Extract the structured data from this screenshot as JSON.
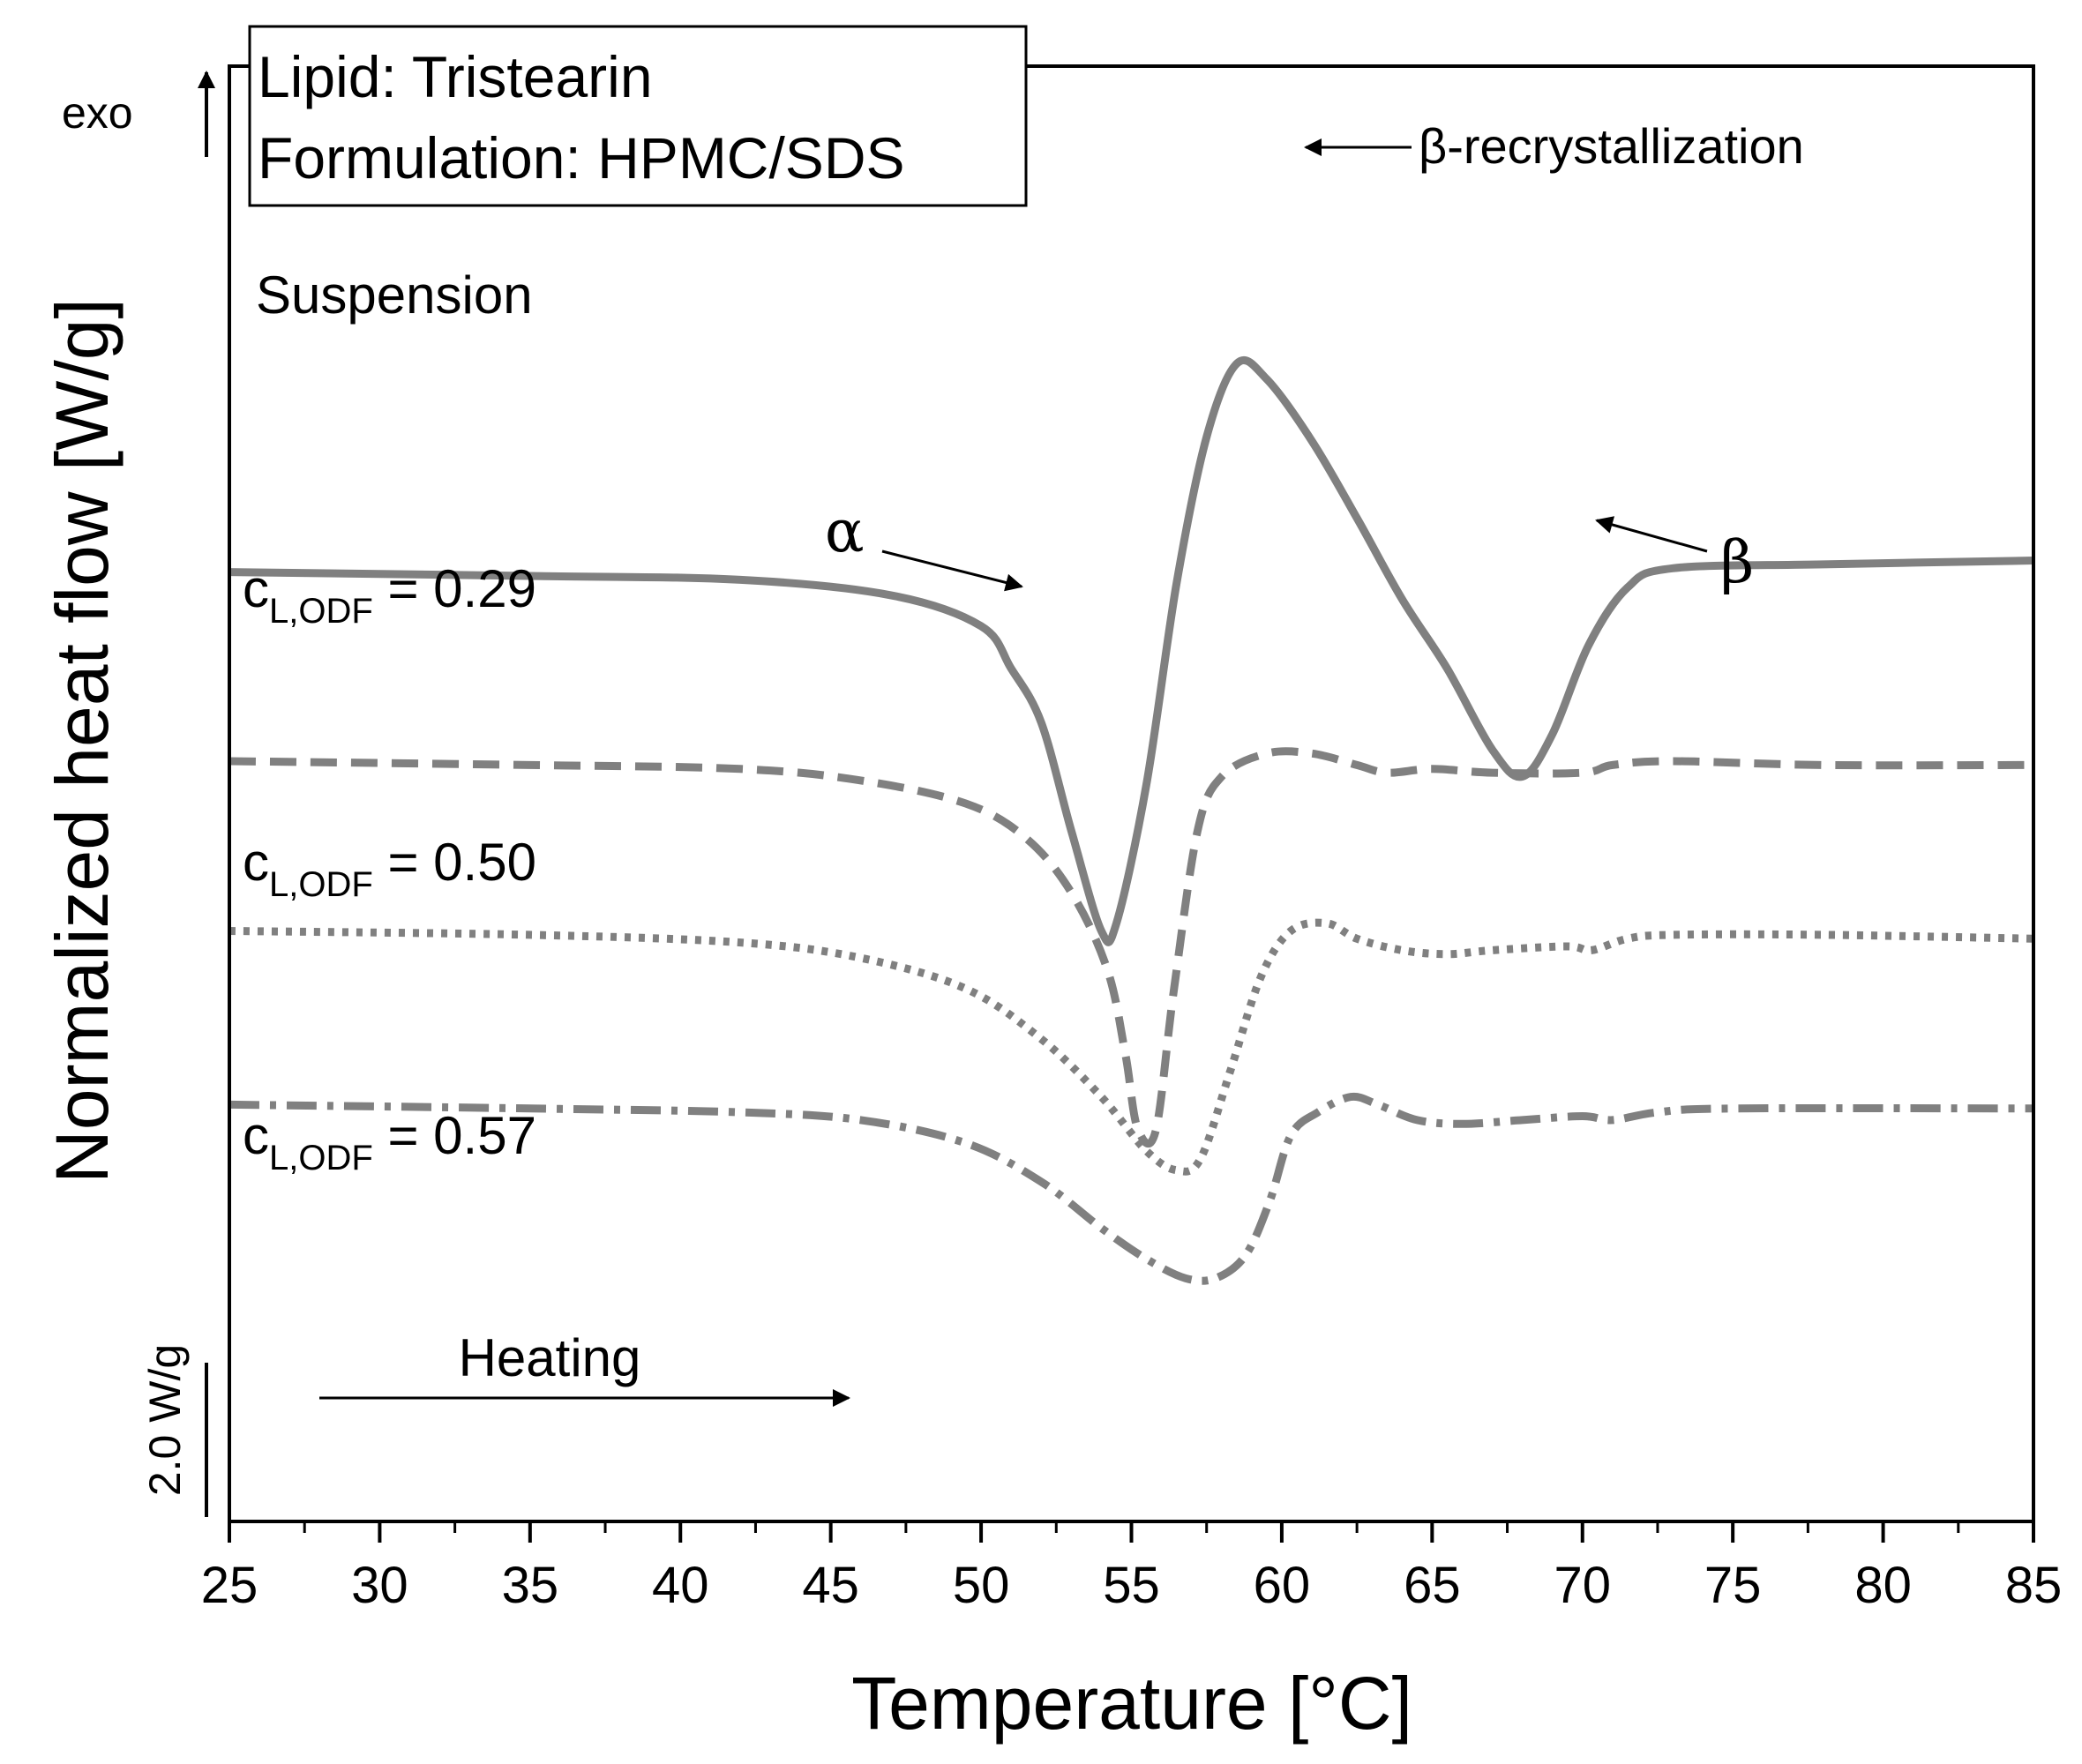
{
  "chart_data": {
    "type": "line",
    "xlabel": "Temperature [°C]",
    "ylabel": "Normalized heat flow [W/g]",
    "xlim": [
      25,
      85
    ],
    "x_ticks": [
      "25",
      "30",
      "35",
      "40",
      "45",
      "50",
      "55",
      "60",
      "65",
      "70",
      "75",
      "80",
      "85"
    ],
    "y_ticks": [],
    "grid": false,
    "legend_box": {
      "line1": "Lipid: Tristearin",
      "line2": "Formulation: HPMC/SDS",
      "placement": "top-left"
    },
    "exo_label": "exo",
    "scale_bar_label": "2.0 W/g",
    "scale_bar_value_wg": 2.0,
    "heating_label": "Heating",
    "annotations": {
      "beta_recrystallization": "β-recrystallization",
      "alpha": "α",
      "beta": "β"
    },
    "series": [
      {
        "name": "Suspension",
        "label_main": "Suspension",
        "label_sub": "",
        "label_value": "",
        "style": "solid",
        "color": "#808080",
        "points": [
          [
            25,
            8.05
          ],
          [
            35,
            8.0
          ],
          [
            42,
            7.95
          ],
          [
            47,
            7.75
          ],
          [
            50,
            7.35
          ],
          [
            51,
            6.8
          ],
          [
            52,
            6.1
          ],
          [
            53,
            4.7
          ],
          [
            54,
            3.4
          ],
          [
            54.5,
            3.5
          ],
          [
            55.5,
            5.3
          ],
          [
            56.5,
            7.9
          ],
          [
            57.5,
            9.8
          ],
          [
            58.5,
            10.75
          ],
          [
            59.5,
            10.55
          ],
          [
            61,
            9.75
          ],
          [
            62.5,
            8.75
          ],
          [
            64,
            7.7
          ],
          [
            65.5,
            6.8
          ],
          [
            67,
            5.75
          ],
          [
            68,
            5.4
          ],
          [
            69,
            5.95
          ],
          [
            70.2,
            7.1
          ],
          [
            71.5,
            7.85
          ],
          [
            73,
            8.1
          ],
          [
            78,
            8.15
          ],
          [
            85,
            8.2
          ]
        ]
      },
      {
        "name": "cL,ODF = 0.29",
        "label_main": "c",
        "label_sub": "L,ODF",
        "label_value": " = 0.29",
        "style": "dashed",
        "color": "#808080",
        "points": [
          [
            25,
            5.6
          ],
          [
            35,
            5.55
          ],
          [
            42,
            5.5
          ],
          [
            46,
            5.35
          ],
          [
            49.5,
            5.05
          ],
          [
            51.5,
            4.6
          ],
          [
            53,
            3.9
          ],
          [
            54.2,
            2.9
          ],
          [
            54.8,
            1.8
          ],
          [
            55.2,
            0.85
          ],
          [
            55.8,
            0.8
          ],
          [
            56.4,
            2.6
          ],
          [
            57.2,
            4.7
          ],
          [
            58,
            5.4
          ],
          [
            59.5,
            5.7
          ],
          [
            61,
            5.7
          ],
          [
            62.5,
            5.55
          ],
          [
            63.5,
            5.45
          ],
          [
            65,
            5.5
          ],
          [
            67,
            5.45
          ],
          [
            70,
            5.45
          ],
          [
            71,
            5.55
          ],
          [
            73,
            5.6
          ],
          [
            78,
            5.55
          ],
          [
            85,
            5.55
          ]
        ]
      },
      {
        "name": "cL,ODF = 0.50",
        "label_main": "c",
        "label_sub": "L,ODF",
        "label_value": " = 0.50",
        "style": "dotted",
        "color": "#808080",
        "points": [
          [
            25,
            3.4
          ],
          [
            35,
            3.35
          ],
          [
            42,
            3.25
          ],
          [
            46,
            3.05
          ],
          [
            49.5,
            2.65
          ],
          [
            52,
            2.0
          ],
          [
            54,
            1.25
          ],
          [
            55.5,
            0.55
          ],
          [
            56.5,
            0.3
          ],
          [
            57.3,
            0.45
          ],
          [
            58.3,
            1.6
          ],
          [
            59.3,
            2.8
          ],
          [
            60.3,
            3.4
          ],
          [
            61.5,
            3.5
          ],
          [
            62.5,
            3.3
          ],
          [
            64,
            3.15
          ],
          [
            65.5,
            3.1
          ],
          [
            67,
            3.15
          ],
          [
            69.5,
            3.2
          ],
          [
            70.3,
            3.15
          ],
          [
            71.5,
            3.3
          ],
          [
            73,
            3.35
          ],
          [
            78,
            3.35
          ],
          [
            85,
            3.3
          ]
        ]
      },
      {
        "name": "cL,ODF = 0.57",
        "label_main": "c",
        "label_sub": "L,ODF",
        "label_value": " = 0.57",
        "style": "dashdot",
        "color": "#808080",
        "points": [
          [
            25,
            1.15
          ],
          [
            35,
            1.1
          ],
          [
            42,
            1.05
          ],
          [
            46,
            0.95
          ],
          [
            49.5,
            0.65
          ],
          [
            52,
            0.15
          ],
          [
            54,
            -0.45
          ],
          [
            55.5,
            -0.85
          ],
          [
            56.8,
            -1.1
          ],
          [
            57.8,
            -1.1
          ],
          [
            58.8,
            -0.8
          ],
          [
            59.6,
            -0.1
          ],
          [
            60.3,
            0.75
          ],
          [
            61.2,
            1.05
          ],
          [
            62.3,
            1.25
          ],
          [
            63.2,
            1.15
          ],
          [
            64.5,
            0.95
          ],
          [
            66,
            0.9
          ],
          [
            68,
            0.95
          ],
          [
            70,
            1.0
          ],
          [
            71,
            0.95
          ],
          [
            72.5,
            1.05
          ],
          [
            75,
            1.1
          ],
          [
            85,
            1.1
          ]
        ]
      }
    ]
  }
}
